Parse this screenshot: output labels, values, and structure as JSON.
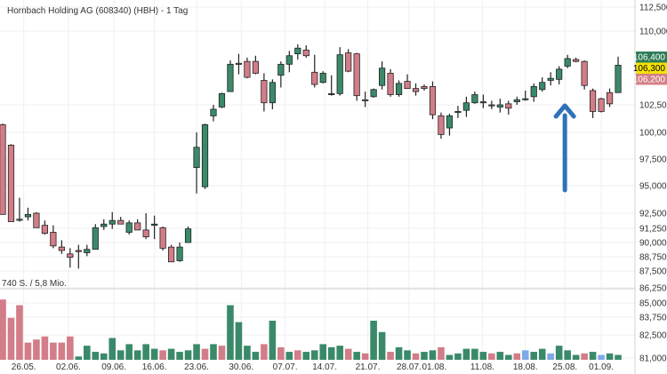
{
  "chart_data": {
    "type": "candlestick",
    "title": "Hornbach Holding AG (608340) (HBH) - 1 Tag",
    "volume_label": "740 S. / 5,8 Mio.",
    "x_tick_labels": [
      "26.05.",
      "02.06.",
      "09.06.",
      "16.06.",
      "23.06.",
      "30.06.",
      "07.07.",
      "14.07.",
      "21.07.",
      "28.07.",
      "01.08.",
      "11.08.",
      "18.08.",
      "25.08.",
      "01.09."
    ],
    "y_ticks": [
      {
        "value": 112500,
        "label": "112,500"
      },
      {
        "value": 110000,
        "label": "110,000"
      },
      {
        "value": 102500,
        "label": "102,500"
      },
      {
        "value": 100000,
        "label": "100,000"
      },
      {
        "value": 97500,
        "label": "97,500"
      },
      {
        "value": 95000,
        "label": "95,000"
      },
      {
        "value": 92500,
        "label": "92,500"
      },
      {
        "value": 91250,
        "label": "91,250"
      },
      {
        "value": 90000,
        "label": "90,000"
      },
      {
        "value": 88750,
        "label": "88,750"
      },
      {
        "value": 87500,
        "label": "87,500"
      },
      {
        "value": 86250,
        "label": "86,250"
      },
      {
        "value": 85000,
        "label": "85,000"
      },
      {
        "value": 83750,
        "label": "83,750"
      },
      {
        "value": 82500,
        "label": "82,500"
      },
      {
        "value": 81000,
        "label": "81,000"
      }
    ],
    "price_boxes": [
      {
        "label": "106,400",
        "value": 106400,
        "color": "#2e7d57",
        "text_color": "#ffffff"
      },
      {
        "label": "106,300",
        "value": 106300,
        "color": "#f5e30a",
        "text_color": "#000000"
      },
      {
        "label": "106,200",
        "value": 106200,
        "color": "#d48088",
        "text_color": "#ffffff"
      }
    ],
    "colors": {
      "up": "#3a8a6a",
      "down": "#d27d88",
      "neutral": "#7fa8e6",
      "arrow": "#2f72b8"
    },
    "grid": true,
    "candles": [
      {
        "o": 100700,
        "h": 100800,
        "l": 92400,
        "c": 92400
      },
      {
        "o": 98800,
        "h": 98900,
        "l": 91800,
        "c": 91800
      },
      {
        "o": 92000,
        "h": 93900,
        "l": 91800,
        "c": 92000
      },
      {
        "o": 92200,
        "h": 93000,
        "l": 91900,
        "c": 92400
      },
      {
        "o": 92500,
        "h": 92600,
        "l": 91300,
        "c": 91300
      },
      {
        "o": 91500,
        "h": 91900,
        "l": 90700,
        "c": 90800
      },
      {
        "o": 90900,
        "h": 91500,
        "l": 89500,
        "c": 89700
      },
      {
        "o": 89600,
        "h": 90200,
        "l": 89000,
        "c": 89300
      },
      {
        "o": 89000,
        "h": 89500,
        "l": 87800,
        "c": 88700
      },
      {
        "o": 89300,
        "h": 89800,
        "l": 87700,
        "c": 89200
      },
      {
        "o": 89100,
        "h": 89800,
        "l": 88800,
        "c": 89400
      },
      {
        "o": 89400,
        "h": 91600,
        "l": 89400,
        "c": 91300
      },
      {
        "o": 91400,
        "h": 92000,
        "l": 91100,
        "c": 91600
      },
      {
        "o": 91600,
        "h": 92600,
        "l": 91200,
        "c": 91900
      },
      {
        "o": 91900,
        "h": 92200,
        "l": 91600,
        "c": 91600
      },
      {
        "o": 90900,
        "h": 91900,
        "l": 90700,
        "c": 91700
      },
      {
        "o": 91700,
        "h": 92000,
        "l": 91100,
        "c": 91100
      },
      {
        "o": 91100,
        "h": 92500,
        "l": 90300,
        "c": 90500
      },
      {
        "o": 91500,
        "h": 92300,
        "l": 90300,
        "c": 91600
      },
      {
        "o": 91300,
        "h": 91400,
        "l": 89300,
        "c": 89500
      },
      {
        "o": 89600,
        "h": 89800,
        "l": 88300,
        "c": 88300
      },
      {
        "o": 88400,
        "h": 90000,
        "l": 88300,
        "c": 89600
      },
      {
        "o": 90000,
        "h": 91400,
        "l": 90000,
        "c": 91200
      },
      {
        "o": 96700,
        "h": 100000,
        "l": 94300,
        "c": 98600
      },
      {
        "o": 94900,
        "h": 100800,
        "l": 94700,
        "c": 100700
      },
      {
        "o": 101500,
        "h": 102500,
        "l": 101000,
        "c": 102100
      },
      {
        "o": 102300,
        "h": 103700,
        "l": 102200,
        "c": 103600
      },
      {
        "o": 103800,
        "h": 106900,
        "l": 103800,
        "c": 106500
      },
      {
        "o": 106500,
        "h": 107600,
        "l": 105500,
        "c": 106600
      },
      {
        "o": 106800,
        "h": 107200,
        "l": 105100,
        "c": 105200
      },
      {
        "o": 106800,
        "h": 107400,
        "l": 105500,
        "c": 105600
      },
      {
        "o": 104900,
        "h": 105600,
        "l": 101900,
        "c": 102700
      },
      {
        "o": 102700,
        "h": 105000,
        "l": 102100,
        "c": 104700
      },
      {
        "o": 105400,
        "h": 106800,
        "l": 104200,
        "c": 106500
      },
      {
        "o": 106500,
        "h": 107900,
        "l": 105700,
        "c": 107400
      },
      {
        "o": 107600,
        "h": 108600,
        "l": 107000,
        "c": 108200
      },
      {
        "o": 108000,
        "h": 108500,
        "l": 107200,
        "c": 107400
      },
      {
        "o": 105700,
        "h": 107500,
        "l": 104200,
        "c": 104500
      },
      {
        "o": 104700,
        "h": 105800,
        "l": 104600,
        "c": 105600
      },
      {
        "o": 103600,
        "h": 105400,
        "l": 103400,
        "c": 103600
      },
      {
        "o": 103600,
        "h": 108300,
        "l": 103400,
        "c": 107500
      },
      {
        "o": 107700,
        "h": 108100,
        "l": 105700,
        "c": 105800
      },
      {
        "o": 107600,
        "h": 107700,
        "l": 102900,
        "c": 103400
      },
      {
        "o": 103000,
        "h": 103800,
        "l": 102300,
        "c": 102900
      },
      {
        "o": 103300,
        "h": 104100,
        "l": 103200,
        "c": 104000
      },
      {
        "o": 104400,
        "h": 106800,
        "l": 104000,
        "c": 106100
      },
      {
        "o": 105600,
        "h": 106000,
        "l": 103300,
        "c": 103500
      },
      {
        "o": 103500,
        "h": 104900,
        "l": 103300,
        "c": 104600
      },
      {
        "o": 104800,
        "h": 105500,
        "l": 104100,
        "c": 104100
      },
      {
        "o": 104100,
        "h": 104600,
        "l": 103400,
        "c": 103800
      },
      {
        "o": 104300,
        "h": 104500,
        "l": 103900,
        "c": 104100
      },
      {
        "o": 104300,
        "h": 104800,
        "l": 101200,
        "c": 101600
      },
      {
        "o": 101500,
        "h": 101800,
        "l": 99400,
        "c": 99800
      },
      {
        "o": 100400,
        "h": 101700,
        "l": 99700,
        "c": 101500
      },
      {
        "o": 101800,
        "h": 102400,
        "l": 101300,
        "c": 101900
      },
      {
        "o": 102000,
        "h": 103300,
        "l": 101400,
        "c": 102700
      },
      {
        "o": 102700,
        "h": 103800,
        "l": 102600,
        "c": 103500
      },
      {
        "o": 102800,
        "h": 103500,
        "l": 102200,
        "c": 102800
      },
      {
        "o": 102500,
        "h": 102900,
        "l": 102100,
        "c": 102500
      },
      {
        "o": 102300,
        "h": 103100,
        "l": 101800,
        "c": 102500
      },
      {
        "o": 102600,
        "h": 102900,
        "l": 101600,
        "c": 102200
      },
      {
        "o": 102800,
        "h": 103300,
        "l": 102500,
        "c": 103000
      },
      {
        "o": 103100,
        "h": 103900,
        "l": 102900,
        "c": 103100
      },
      {
        "o": 103300,
        "h": 104600,
        "l": 102800,
        "c": 104300
      },
      {
        "o": 104000,
        "h": 105200,
        "l": 103800,
        "c": 104700
      },
      {
        "o": 104900,
        "h": 105700,
        "l": 104400,
        "c": 105100
      },
      {
        "o": 105000,
        "h": 106300,
        "l": 104500,
        "c": 106000
      },
      {
        "o": 106300,
        "h": 107500,
        "l": 106100,
        "c": 107100
      },
      {
        "o": 107000,
        "h": 107200,
        "l": 106700,
        "c": 106800
      },
      {
        "o": 106800,
        "h": 106900,
        "l": 104000,
        "c": 104400
      },
      {
        "o": 103900,
        "h": 104100,
        "l": 101300,
        "c": 101900
      },
      {
        "o": 103100,
        "h": 103200,
        "l": 101800,
        "c": 101900
      },
      {
        "o": 103700,
        "h": 104100,
        "l": 102300,
        "c": 102600
      },
      {
        "o": 103700,
        "h": 107300,
        "l": 103700,
        "c": 106400
      }
    ],
    "volumes": [
      {
        "v": 85300,
        "c": "down"
      },
      {
        "v": 83700,
        "c": "down"
      },
      {
        "v": 84800,
        "c": "down"
      },
      {
        "v": 82000,
        "c": "down"
      },
      {
        "v": 82200,
        "c": "down"
      },
      {
        "v": 82400,
        "c": "down"
      },
      {
        "v": 82000,
        "c": "down"
      },
      {
        "v": 82000,
        "c": "down"
      },
      {
        "v": 82400,
        "c": "down"
      },
      {
        "v": 81100,
        "c": "up"
      },
      {
        "v": 81800,
        "c": "up"
      },
      {
        "v": 81400,
        "c": "up"
      },
      {
        "v": 81300,
        "c": "up"
      },
      {
        "v": 82300,
        "c": "up"
      },
      {
        "v": 81500,
        "c": "up"
      },
      {
        "v": 81900,
        "c": "up"
      },
      {
        "v": 81500,
        "c": "up"
      },
      {
        "v": 81900,
        "c": "up"
      },
      {
        "v": 81600,
        "c": "up"
      },
      {
        "v": 81500,
        "c": "down"
      },
      {
        "v": 81600,
        "c": "up"
      },
      {
        "v": 81400,
        "c": "up"
      },
      {
        "v": 81500,
        "c": "up"
      },
      {
        "v": 81900,
        "c": "up"
      },
      {
        "v": 81600,
        "c": "down"
      },
      {
        "v": 81900,
        "c": "up"
      },
      {
        "v": 81800,
        "c": "down"
      },
      {
        "v": 84800,
        "c": "up"
      },
      {
        "v": 83400,
        "c": "up"
      },
      {
        "v": 81800,
        "c": "up"
      },
      {
        "v": 81400,
        "c": "up"
      },
      {
        "v": 81900,
        "c": "down"
      },
      {
        "v": 83500,
        "c": "up"
      },
      {
        "v": 81700,
        "c": "down"
      },
      {
        "v": 81400,
        "c": "up"
      },
      {
        "v": 81500,
        "c": "down"
      },
      {
        "v": 81400,
        "c": "up"
      },
      {
        "v": 81500,
        "c": "up"
      },
      {
        "v": 81900,
        "c": "up"
      },
      {
        "v": 81700,
        "c": "up"
      },
      {
        "v": 81800,
        "c": "up"
      },
      {
        "v": 81600,
        "c": "down"
      },
      {
        "v": 81400,
        "c": "up"
      },
      {
        "v": 81300,
        "c": "down"
      },
      {
        "v": 83500,
        "c": "up"
      },
      {
        "v": 82700,
        "c": "up"
      },
      {
        "v": 81400,
        "c": "down"
      },
      {
        "v": 81700,
        "c": "up"
      },
      {
        "v": 81500,
        "c": "up"
      },
      {
        "v": 81300,
        "c": "down"
      },
      {
        "v": 81400,
        "c": "up"
      },
      {
        "v": 81500,
        "c": "up"
      },
      {
        "v": 81700,
        "c": "down"
      },
      {
        "v": 81200,
        "c": "up"
      },
      {
        "v": 81300,
        "c": "up"
      },
      {
        "v": 81600,
        "c": "up"
      },
      {
        "v": 81600,
        "c": "up"
      },
      {
        "v": 81400,
        "c": "up"
      },
      {
        "v": 81300,
        "c": "down"
      },
      {
        "v": 81400,
        "c": "up"
      },
      {
        "v": 81200,
        "c": "up"
      },
      {
        "v": 81300,
        "c": "down"
      },
      {
        "v": 81500,
        "c": "neutral"
      },
      {
        "v": 81400,
        "c": "up"
      },
      {
        "v": 81600,
        "c": "up"
      },
      {
        "v": 81300,
        "c": "neutral"
      },
      {
        "v": 81800,
        "c": "up"
      },
      {
        "v": 81500,
        "c": "up"
      },
      {
        "v": 81200,
        "c": "up"
      },
      {
        "v": 81300,
        "c": "down"
      },
      {
        "v": 81400,
        "c": "up"
      },
      {
        "v": 81200,
        "c": "neutral"
      },
      {
        "v": 81300,
        "c": "up"
      },
      {
        "v": 81200,
        "c": "up"
      }
    ],
    "annotation": {
      "type": "arrow-up",
      "near_candle": 67
    }
  }
}
